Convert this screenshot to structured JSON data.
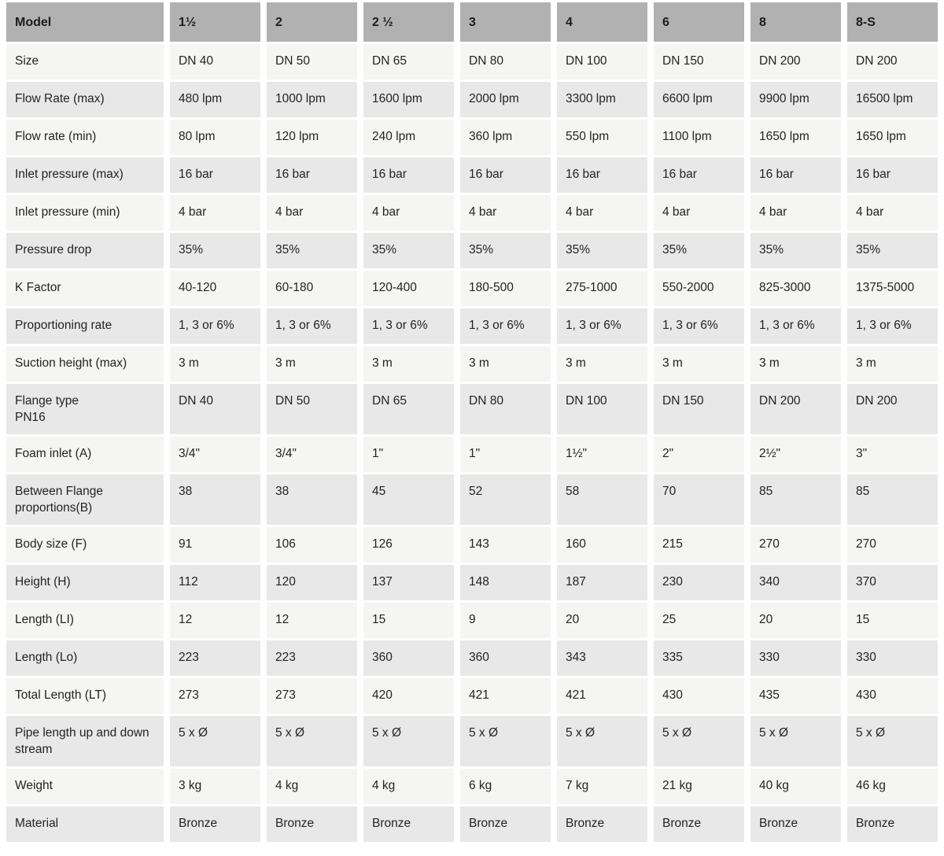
{
  "colors": {
    "header_bg": "#b1b1b1",
    "row_light": "#f5f5f4",
    "row_dark": "#e9e8e8",
    "gap": "#ffffff",
    "text": "#232323"
  },
  "table": {
    "columns": [
      "Model",
      "1½",
      "2",
      "2 ½",
      "3",
      "4",
      "6",
      "8",
      "8-S"
    ],
    "rows": [
      {
        "label": "Size",
        "values": [
          "DN 40",
          "DN 50",
          "DN 65",
          "DN 80",
          "DN 100",
          "DN 150",
          "DN 200",
          "DN 200"
        ]
      },
      {
        "label": "Flow Rate (max)",
        "values": [
          "480 lpm",
          "1000 lpm",
          "1600 lpm",
          "2000 lpm",
          "3300 lpm",
          "6600 lpm",
          "9900 lpm",
          "16500 lpm"
        ]
      },
      {
        "label": "Flow rate (min)",
        "values": [
          "80 lpm",
          "120 lpm",
          "240 lpm",
          "360 lpm",
          "550 lpm",
          "1100 lpm",
          "1650 lpm",
          "1650 lpm"
        ]
      },
      {
        "label": "Inlet pressure (max)",
        "values": [
          "16 bar",
          "16 bar",
          "16 bar",
          "16 bar",
          "16 bar",
          "16 bar",
          "16 bar",
          "16 bar"
        ]
      },
      {
        "label": "Inlet pressure (min)",
        "values": [
          "4 bar",
          "4 bar",
          "4 bar",
          "4 bar",
          "4 bar",
          "4 bar",
          "4 bar",
          "4 bar"
        ]
      },
      {
        "label": "Pressure drop",
        "values": [
          "35%",
          "35%",
          "35%",
          "35%",
          "35%",
          "35%",
          "35%",
          "35%"
        ]
      },
      {
        "label": "K Factor",
        "values": [
          "40-120",
          "60-180",
          "120-400",
          "180-500",
          "275-1000",
          "550-2000",
          "825-3000",
          "1375-5000"
        ]
      },
      {
        "label": "Proportioning rate",
        "values": [
          "1, 3 or 6%",
          "1, 3 or 6%",
          "1, 3 or 6%",
          "1, 3 or 6%",
          "1, 3 or 6%",
          "1, 3 or 6%",
          "1, 3 or 6%",
          "1, 3 or 6%"
        ]
      },
      {
        "label": "Suction height (max)",
        "values": [
          "3 m",
          "3 m",
          "3 m",
          "3 m",
          "3 m",
          "3 m",
          "3 m",
          "3 m"
        ]
      },
      {
        "label": "Flange type\nPN16",
        "values": [
          "DN 40",
          "DN 50",
          "DN 65",
          "DN 80",
          "DN 100",
          "DN 150",
          "DN 200",
          "DN 200"
        ]
      },
      {
        "label": "Foam inlet (A)",
        "values": [
          "3/4\"",
          "3/4\"",
          "1\"",
          "1\"",
          "1½\"",
          "2\"",
          "2½\"",
          "3\""
        ]
      },
      {
        "label": "Between Flange proportions(B)",
        "values": [
          "38",
          "38",
          "45",
          "52",
          "58",
          "70",
          "85",
          "85"
        ]
      },
      {
        "label": "Body size (F)",
        "values": [
          "91",
          "106",
          "126",
          "143",
          "160",
          "215",
          "270",
          "270"
        ]
      },
      {
        "label": "Height (H)",
        "values": [
          "112",
          "120",
          "137",
          "148",
          "187",
          "230",
          "340",
          "370"
        ]
      },
      {
        "label": "Length (LI)",
        "values": [
          "12",
          "12",
          "15",
          "9",
          "20",
          "25",
          "20",
          "15"
        ]
      },
      {
        "label": "Length (Lo)",
        "values": [
          "223",
          "223",
          "360",
          "360",
          "343",
          "335",
          "330",
          "330"
        ]
      },
      {
        "label": "Total Length (LT)",
        "values": [
          "273",
          "273",
          "420",
          "421",
          "421",
          "430",
          "435",
          "430"
        ]
      },
      {
        "label": "Pipe length up and down stream",
        "values": [
          "5 x Ø",
          "5 x Ø",
          "5 x Ø",
          "5 x Ø",
          "5 x Ø",
          "5 x Ø",
          "5 x Ø",
          "5 x Ø"
        ]
      },
      {
        "label": "Weight",
        "values": [
          "3 kg",
          "4 kg",
          "4 kg",
          "6 kg",
          "7 kg",
          "21 kg",
          "40 kg",
          "46 kg"
        ]
      },
      {
        "label": "Material",
        "values": [
          "Bronze",
          "Bronze",
          "Bronze",
          "Bronze",
          "Bronze",
          "Bronze",
          "Bronze",
          "Bronze"
        ]
      }
    ]
  }
}
